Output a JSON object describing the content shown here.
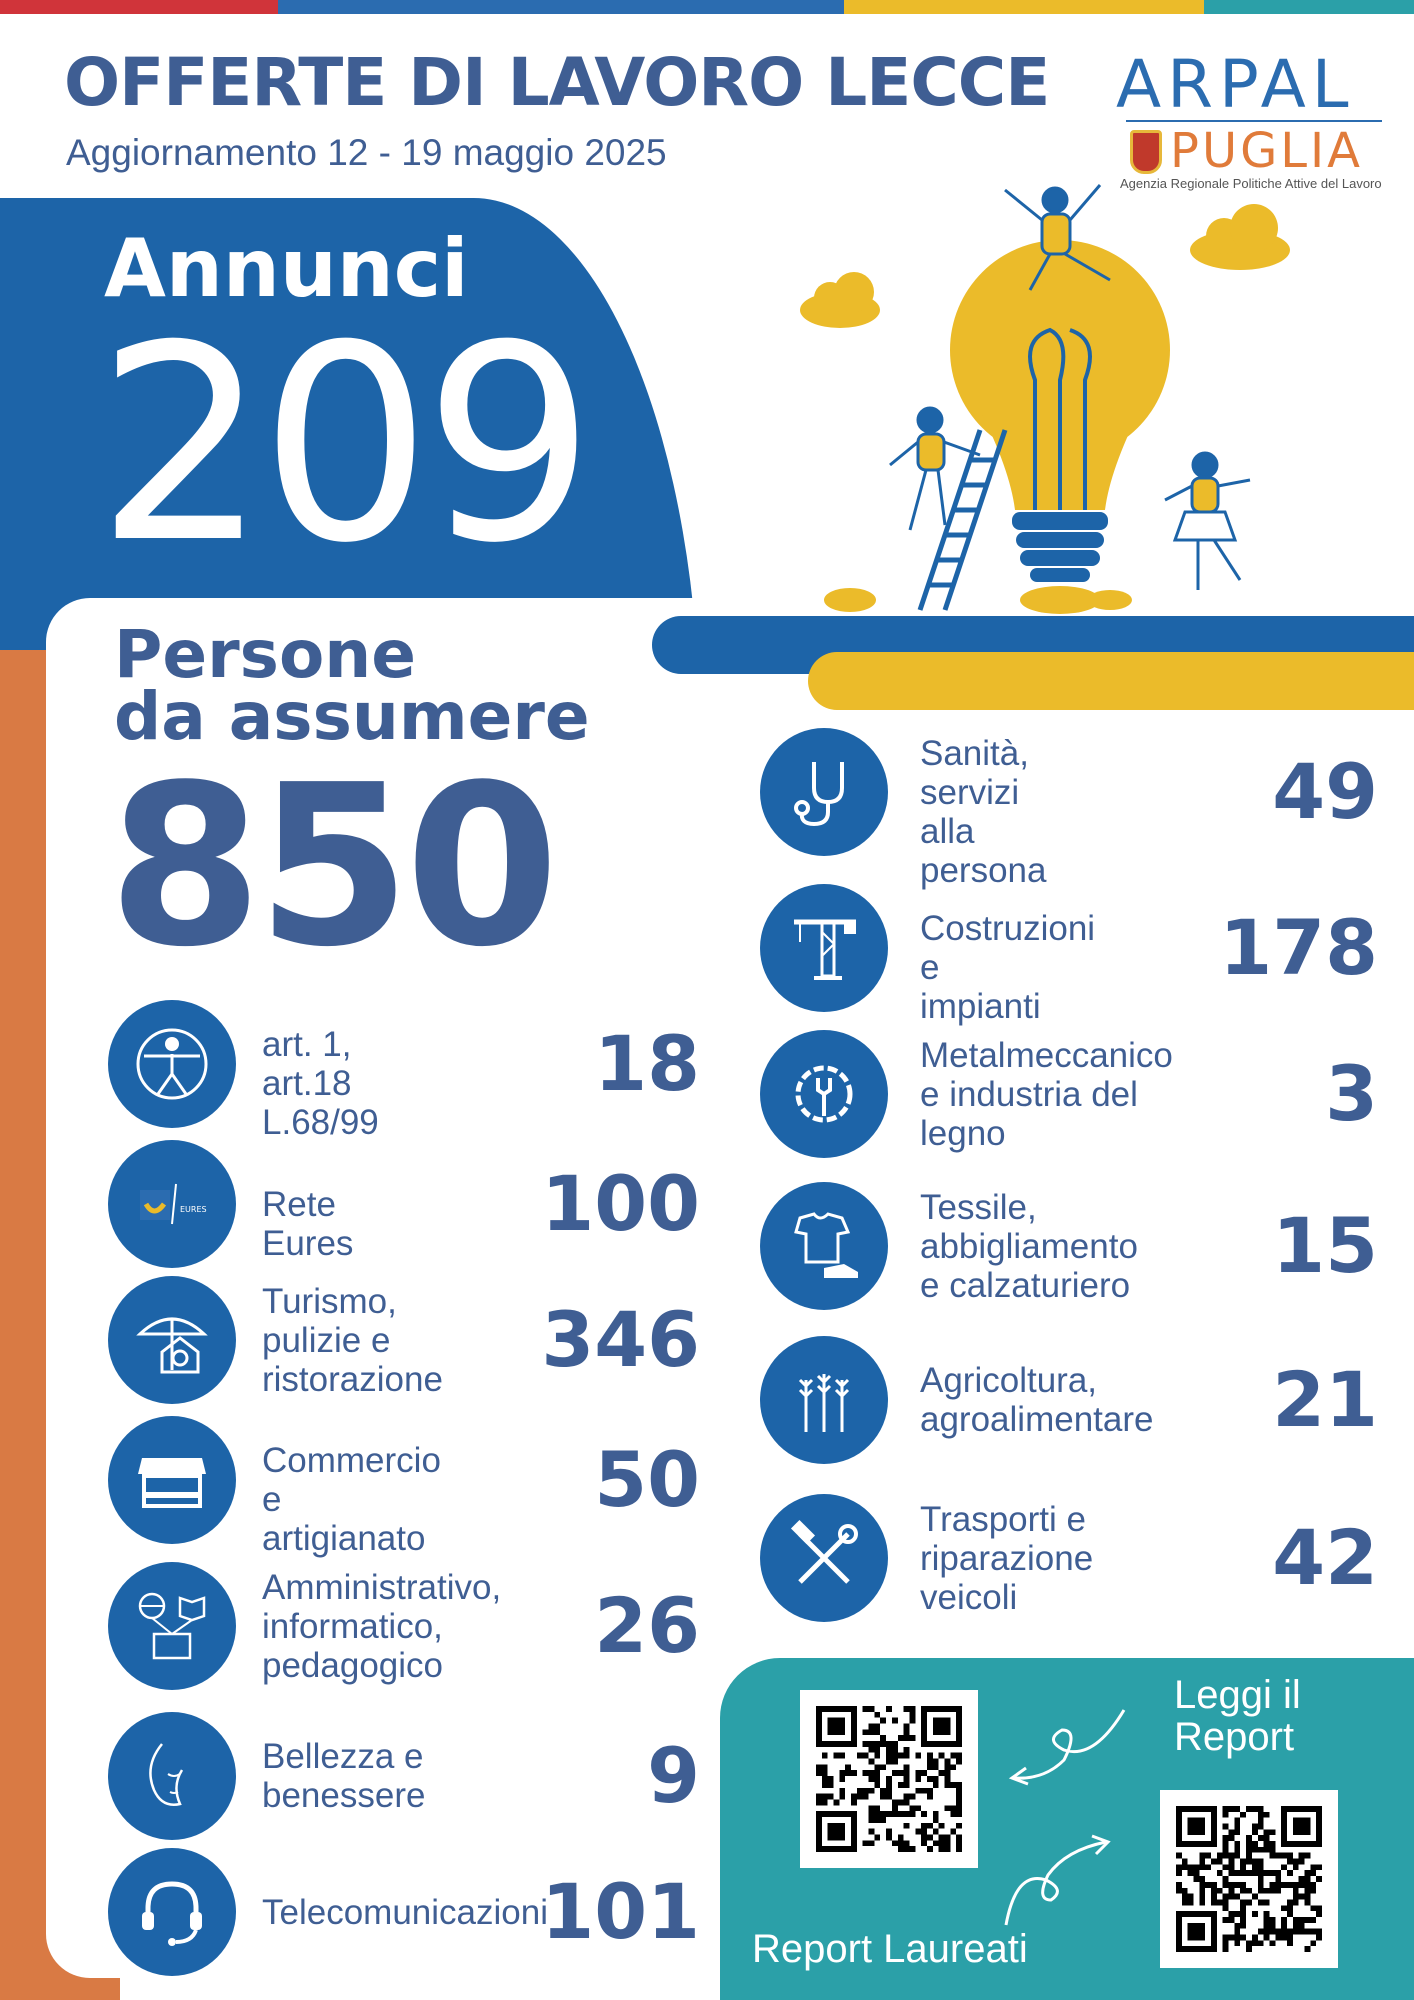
{
  "top_bar_colors": [
    "#d0343a",
    "#2b6cb0",
    "#ebbb2a",
    "#2ba0a8"
  ],
  "header": {
    "title": "OFFERTE DI LAVORO LECCE",
    "subtitle": "Aggiornamento 12 - 19 maggio 2025"
  },
  "logo": {
    "arpal": "ARPAL",
    "puglia": "PUGLIA",
    "tagline": "Agenzia Regionale Politiche Attive del Lavoro"
  },
  "annunci": {
    "label": "Annunci",
    "value": "209"
  },
  "persone": {
    "label": "Persone\nda assumere",
    "value": "850"
  },
  "left_categories": [
    {
      "icon": "accessibility-icon",
      "label": "art. 1, art.18\nL.68/99",
      "value": "18"
    },
    {
      "icon": "eures-logo-icon",
      "label": "Rete Eures",
      "value": "100"
    },
    {
      "icon": "umbrella-house-icon",
      "label": "Turismo,\npulizie e\nristorazione",
      "value": "346"
    },
    {
      "icon": "market-stall-icon",
      "label": "Commercio e\nartigianato",
      "value": "50"
    },
    {
      "icon": "globe-book-icon",
      "label": "Amministrativo,\ninformatico,\npedagogico",
      "value": "26"
    },
    {
      "icon": "face-icon",
      "label": "Bellezza e\nbenessere",
      "value": "9"
    },
    {
      "icon": "headset-icon",
      "label": "Telecomunicazioni",
      "value": "101"
    }
  ],
  "right_categories": [
    {
      "icon": "stethoscope-icon",
      "label": "Sanità,\nservizi alla\npersona",
      "value": "49"
    },
    {
      "icon": "crane-icon",
      "label": "Costruzioni e\nimpianti",
      "value": "178"
    },
    {
      "icon": "gear-wrench-icon",
      "label": "Metalmeccanico\ne industria del\nlegno",
      "value": "3"
    },
    {
      "icon": "tshirt-shoe-icon",
      "label": "Tessile,\nabbigliamento\ne calzaturiero",
      "value": "15"
    },
    {
      "icon": "wheat-icon",
      "label": "Agricoltura,\nagroalimentare",
      "value": "21"
    },
    {
      "icon": "hammer-wrench-icon",
      "label": "Trasporti e\nriparazione\nveicoli",
      "value": "42"
    }
  ],
  "reports": {
    "leggi": "Leggi il\nReport",
    "laureati": "Report Laureati"
  },
  "colors": {
    "blue": "#1d64a8",
    "text_blue": "#3f5e93",
    "yellow": "#ebbb2a",
    "orange": "#d97a44",
    "teal": "#2ba0a8"
  }
}
